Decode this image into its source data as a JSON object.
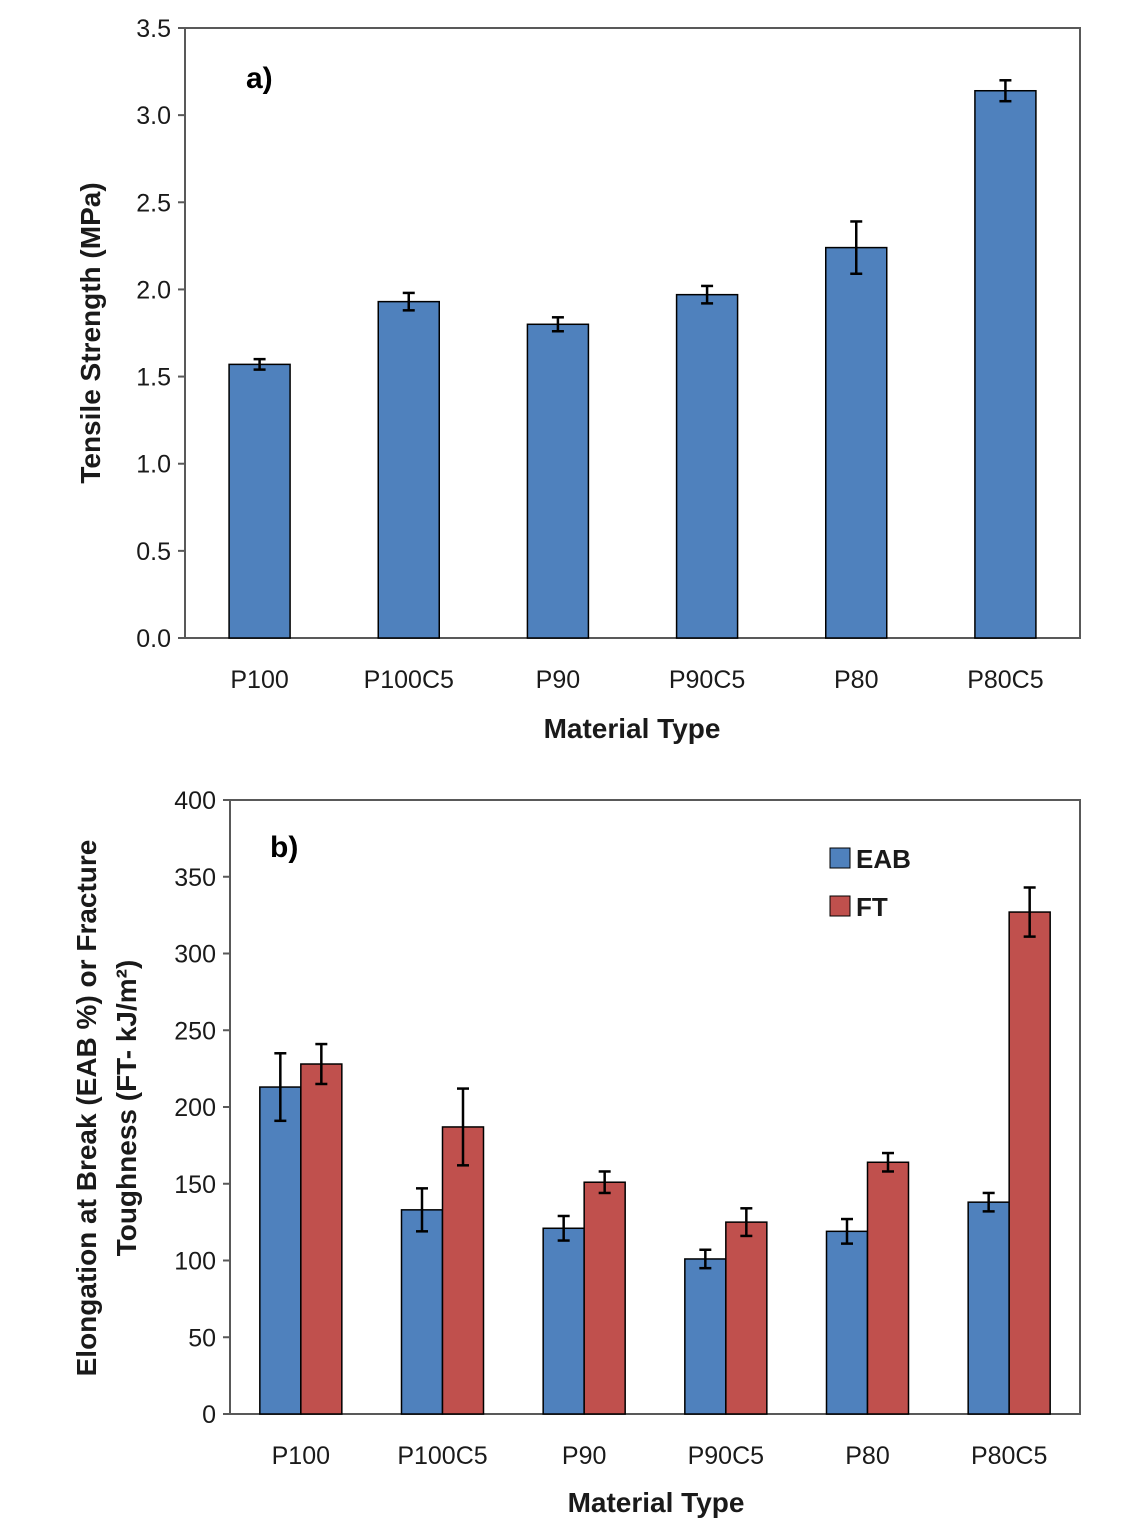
{
  "colors": {
    "eab": "#4f81bd",
    "ft": "#c0504d",
    "axis": "#595959",
    "errorbar": "#000000"
  },
  "chart_data": [
    {
      "type": "bar",
      "panel_label": "a)",
      "title": "",
      "xlabel": "Material Type",
      "ylabel": "Tensile Strength (MPa)",
      "ylim": [
        0,
        3.5
      ],
      "yticks": [
        "0.0",
        "0.5",
        "1.0",
        "1.5",
        "2.0",
        "2.5",
        "3.0",
        "3.5"
      ],
      "categories": [
        "P100",
        "P100C5",
        "P90",
        "P90C5",
        "P80",
        "P80C5"
      ],
      "series": [
        {
          "values": [
            1.57,
            1.93,
            1.8,
            1.97,
            2.24,
            3.14
          ],
          "errors": [
            0.03,
            0.05,
            0.04,
            0.05,
            0.15,
            0.06
          ]
        }
      ],
      "grid": false,
      "legend": null
    },
    {
      "type": "bar",
      "panel_label": "b)",
      "title": "",
      "xlabel": "Material Type",
      "ylabel": "Elongation  at Break (EAB %) or Fracture",
      "ylabel2": "Toughness  (FT- kJ/m²)",
      "ylim": [
        0,
        400
      ],
      "yticks": [
        "0",
        "50",
        "100",
        "150",
        "200",
        "250",
        "300",
        "350",
        "400"
      ],
      "categories": [
        "P100",
        "P100C5",
        "P90",
        "P90C5",
        "P80",
        "P80C5"
      ],
      "series": [
        {
          "name": "EAB",
          "values": [
            213,
            133,
            121,
            101,
            119,
            138
          ],
          "errors": [
            22,
            14,
            8,
            6,
            8,
            6
          ]
        },
        {
          "name": "FT",
          "values": [
            228,
            187,
            151,
            125,
            164,
            327
          ],
          "errors": [
            13,
            25,
            7,
            9,
            6,
            16
          ]
        }
      ],
      "grid": false,
      "legend": "top-right"
    }
  ]
}
